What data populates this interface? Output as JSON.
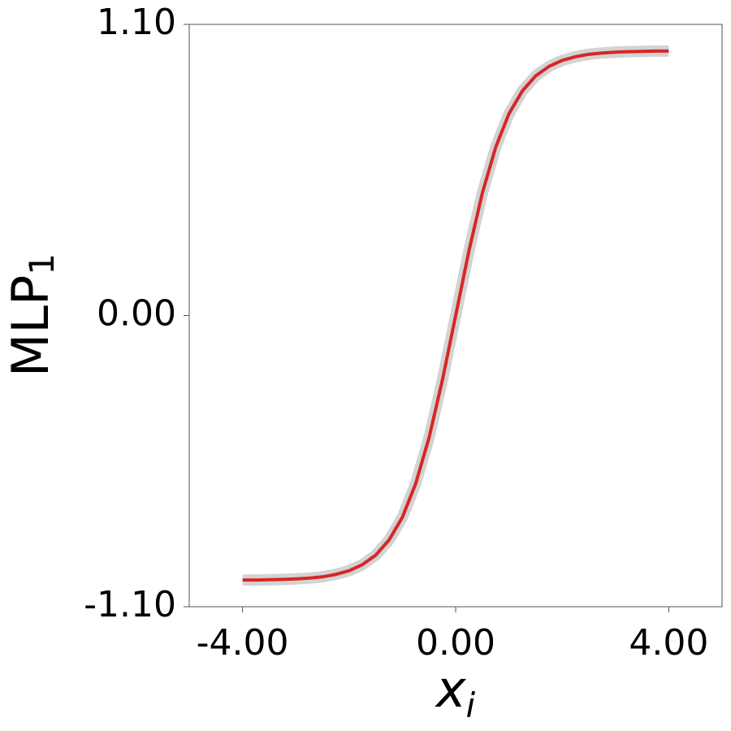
{
  "chart_data": {
    "type": "line",
    "x": [
      -4,
      -3.75,
      -3.5,
      -3.25,
      -3,
      -2.75,
      -2.5,
      -2.25,
      -2,
      -1.75,
      -1.5,
      -1.25,
      -1,
      -0.75,
      -0.5,
      -0.25,
      0,
      0.25,
      0.5,
      0.75,
      1,
      1.25,
      1.5,
      1.75,
      2,
      2.25,
      2.5,
      2.75,
      3,
      3.25,
      3.5,
      3.75,
      4
    ],
    "series": [
      {
        "color": "#d3d3d3",
        "values": [
          -0.999,
          -0.999,
          -0.998,
          -0.997,
          -0.995,
          -0.992,
          -0.987,
          -0.978,
          -0.964,
          -0.941,
          -0.905,
          -0.848,
          -0.762,
          -0.635,
          -0.462,
          -0.245,
          0,
          0.245,
          0.462,
          0.635,
          0.762,
          0.848,
          0.905,
          0.941,
          0.964,
          0.978,
          0.987,
          0.992,
          0.995,
          0.997,
          0.998,
          0.999,
          0.999
        ]
      },
      {
        "color": "#d62728",
        "values": [
          -0.999,
          -0.999,
          -0.998,
          -0.997,
          -0.995,
          -0.992,
          -0.987,
          -0.978,
          -0.964,
          -0.941,
          -0.905,
          -0.848,
          -0.762,
          -0.635,
          -0.462,
          -0.245,
          0,
          0.245,
          0.462,
          0.635,
          0.762,
          0.848,
          0.905,
          0.941,
          0.964,
          0.978,
          0.987,
          0.992,
          0.995,
          0.997,
          0.998,
          0.999,
          0.999
        ]
      }
    ],
    "xlabel": {
      "text": "x",
      "sub": "i"
    },
    "ylabel": {
      "text": "MLP",
      "sub": "1"
    },
    "xlim": [
      -5,
      5
    ],
    "ylim": [
      -1.1,
      1.1
    ],
    "xticks": [
      {
        "value": -4,
        "label": "-4.00"
      },
      {
        "value": 0,
        "label": "0.00"
      },
      {
        "value": 4,
        "label": "4.00"
      }
    ],
    "yticks": [
      {
        "value": -1.1,
        "label": "-1.10"
      },
      {
        "value": 0,
        "label": "0.00"
      },
      {
        "value": 1.1,
        "label": "1.10"
      }
    ],
    "grid": false
  }
}
